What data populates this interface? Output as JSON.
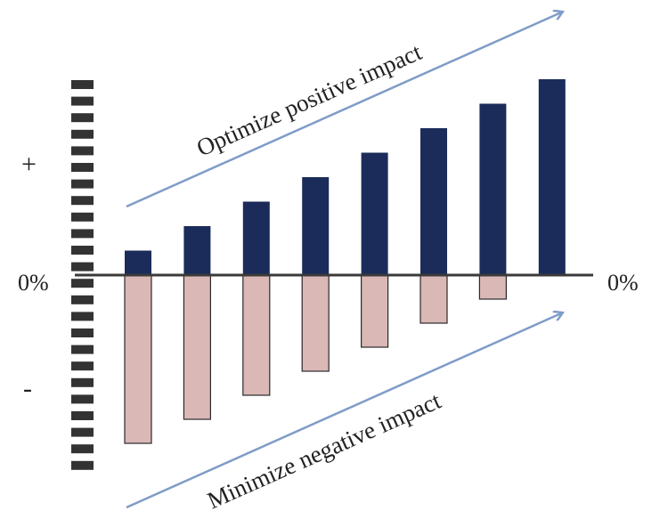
{
  "chart_data": {
    "type": "bar",
    "title": "",
    "xlabel": "",
    "ylabel": "",
    "y_positive_label": "+",
    "y_negative_label": "-",
    "zero_label_left": "0%",
    "zero_label_right": "0%",
    "series": [
      {
        "values": [
          1,
          2,
          3,
          4,
          5,
          6,
          7,
          8
        ]
      },
      {
        "values": [
          -7,
          -6,
          -5,
          -4,
          -3,
          -2,
          -1,
          0
        ]
      }
    ],
    "annotations": [
      {
        "text": "Optimize positive impact",
        "kind": "arrow-trend-up"
      },
      {
        "text": "Minimize negative impact",
        "kind": "arrow-trend-up"
      }
    ],
    "colors": {
      "positive_fill": "#1b2c5a",
      "negative_fill": "#d9b8b6",
      "negative_stroke": "#2a2a2a",
      "arrow": "#7f9cc8",
      "axis": "#3a3a3a",
      "ticks": "#333333"
    },
    "grid": false
  }
}
